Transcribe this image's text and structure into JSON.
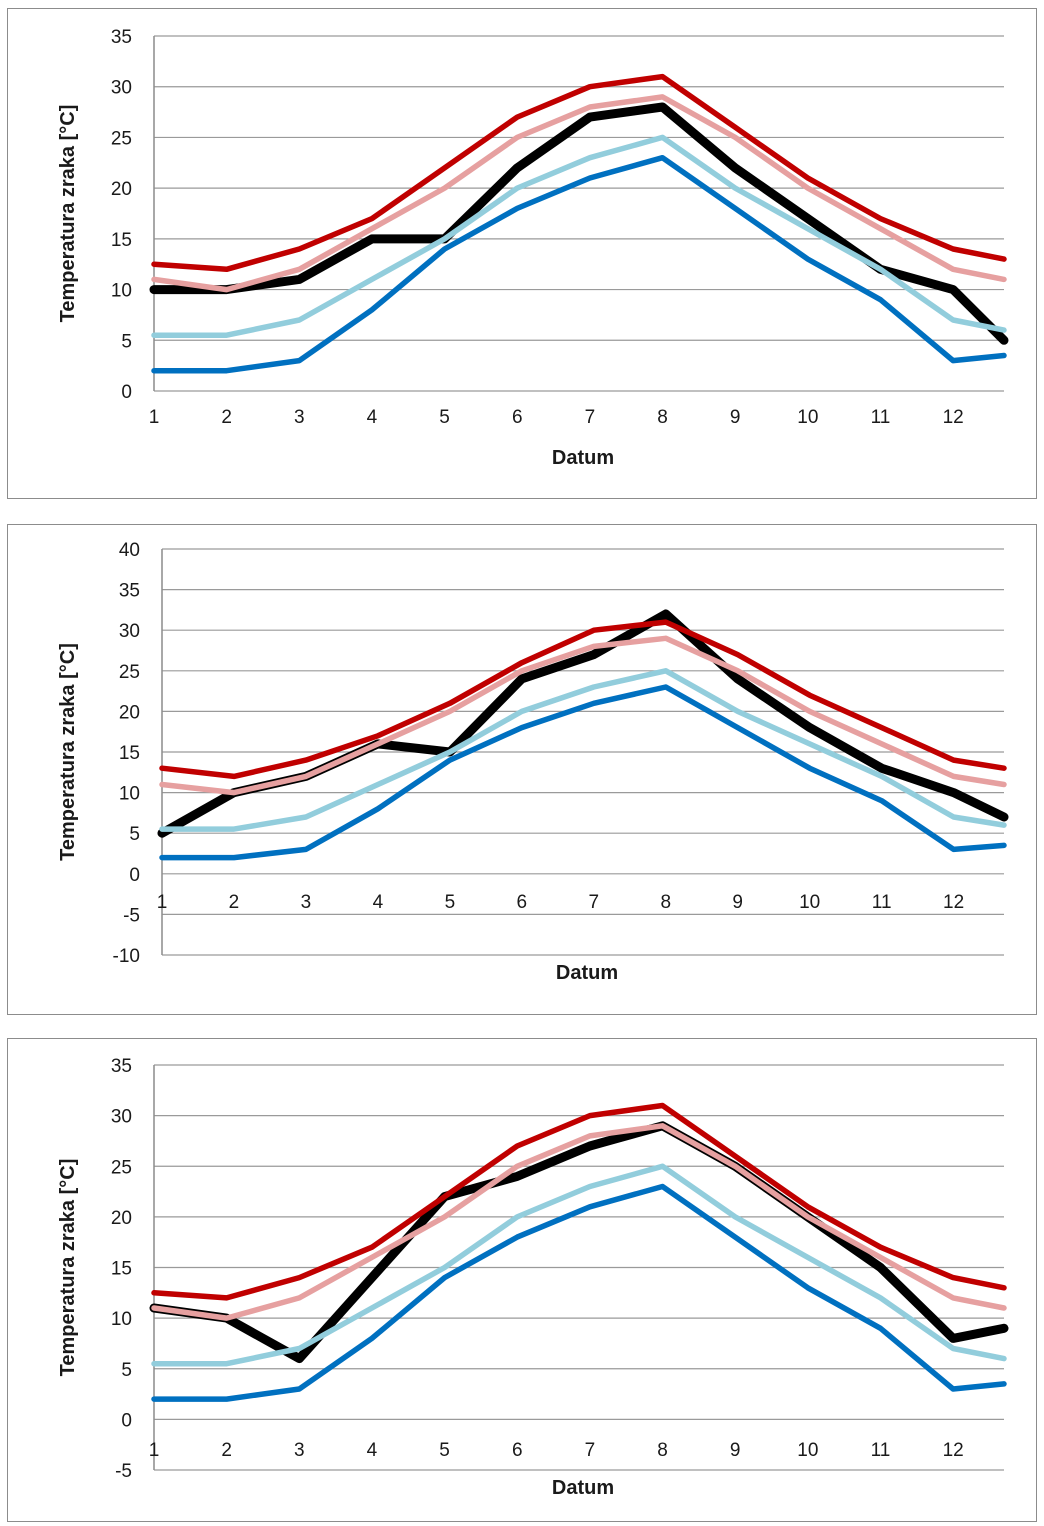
{
  "colors": {
    "black": "#000000",
    "red": "#c00000",
    "pink": "#e6a0a0",
    "lightblue": "#92cddc",
    "blue": "#0070c0",
    "grid": "#9a9a9a"
  },
  "chart_data": [
    {
      "type": "line",
      "title": "",
      "xlabel": "Datum",
      "ylabel": "Temperatura zraka [°C]",
      "xlim": [
        1,
        12.7
      ],
      "ylim": [
        0,
        35
      ],
      "yticks": [
        0,
        5,
        10,
        15,
        20,
        25,
        30,
        35
      ],
      "xticks": [
        1,
        2,
        3,
        4,
        5,
        6,
        7,
        8,
        9,
        10,
        11,
        12
      ],
      "x": [
        1,
        2,
        3,
        4,
        5,
        6,
        7,
        8,
        9,
        10,
        11,
        12,
        12.7
      ],
      "series": [
        {
          "color": "black",
          "values": [
            10,
            10,
            11,
            15,
            15,
            22,
            27,
            28,
            22,
            17,
            12,
            10,
            5
          ]
        },
        {
          "color": "red",
          "values": [
            12.5,
            12,
            14,
            17,
            22,
            27,
            30,
            31,
            26,
            21,
            17,
            14,
            13
          ]
        },
        {
          "color": "pink",
          "values": [
            11,
            10,
            12,
            16,
            20,
            25,
            28,
            29,
            25,
            20,
            16,
            12,
            11
          ]
        },
        {
          "color": "lightblue",
          "values": [
            5.5,
            5.5,
            7,
            11,
            15,
            20,
            23,
            25,
            20,
            16,
            12,
            7,
            6
          ]
        },
        {
          "color": "blue",
          "values": [
            2,
            2,
            3,
            8,
            14,
            18,
            21,
            23,
            18,
            13,
            9,
            3,
            3.5
          ]
        }
      ]
    },
    {
      "type": "line",
      "title": "",
      "xlabel": "Datum",
      "ylabel": "Temperatura zraka [°C]",
      "xlim": [
        1,
        12.7
      ],
      "ylim": [
        -10,
        40
      ],
      "yticks": [
        -10,
        -5,
        0,
        5,
        10,
        15,
        20,
        25,
        30,
        35,
        40
      ],
      "xticks": [
        1,
        2,
        3,
        4,
        5,
        6,
        7,
        8,
        9,
        10,
        11,
        12
      ],
      "x": [
        1,
        2,
        3,
        4,
        5,
        6,
        7,
        8,
        9,
        10,
        11,
        12,
        12.7
      ],
      "series": [
        {
          "color": "black",
          "values": [
            5,
            10,
            12,
            16,
            15,
            24,
            27,
            32,
            24,
            18,
            13,
            10,
            7
          ]
        },
        {
          "color": "red",
          "values": [
            13,
            12,
            14,
            17,
            21,
            26,
            30,
            31,
            27,
            22,
            18,
            14,
            13
          ]
        },
        {
          "color": "pink",
          "values": [
            11,
            10,
            12,
            16,
            20,
            25,
            28,
            29,
            25,
            20,
            16,
            12,
            11
          ]
        },
        {
          "color": "lightblue",
          "values": [
            5.5,
            5.5,
            7,
            11,
            15,
            20,
            23,
            25,
            20,
            16,
            12,
            7,
            6
          ]
        },
        {
          "color": "blue",
          "values": [
            2,
            2,
            3,
            8,
            14,
            18,
            21,
            23,
            18,
            13,
            9,
            3,
            3.5
          ]
        }
      ]
    },
    {
      "type": "line",
      "title": "",
      "xlabel": "Datum",
      "ylabel": "Temperatura zraka [°C]",
      "xlim": [
        1,
        12.7
      ],
      "ylim": [
        -5,
        35
      ],
      "yticks": [
        -5,
        0,
        5,
        10,
        15,
        20,
        25,
        30,
        35
      ],
      "xticks": [
        1,
        2,
        3,
        4,
        5,
        6,
        7,
        8,
        9,
        10,
        11,
        12
      ],
      "x": [
        1,
        2,
        3,
        4,
        5,
        6,
        7,
        8,
        9,
        10,
        11,
        12,
        12.7
      ],
      "series": [
        {
          "color": "black",
          "values": [
            11,
            10,
            6,
            14,
            22,
            24,
            27,
            29,
            25,
            20,
            15,
            8,
            9
          ]
        },
        {
          "color": "red",
          "values": [
            12.5,
            12,
            14,
            17,
            22,
            27,
            30,
            31,
            26,
            21,
            17,
            14,
            13
          ]
        },
        {
          "color": "pink",
          "values": [
            11,
            10,
            12,
            16,
            20,
            25,
            28,
            29,
            25,
            20,
            16,
            12,
            11
          ]
        },
        {
          "color": "lightblue",
          "values": [
            5.5,
            5.5,
            7,
            11,
            15,
            20,
            23,
            25,
            20,
            16,
            12,
            7,
            6
          ]
        },
        {
          "color": "blue",
          "values": [
            2,
            2,
            3,
            8,
            14,
            18,
            21,
            23,
            18,
            13,
            9,
            3,
            3.5
          ]
        }
      ]
    }
  ]
}
